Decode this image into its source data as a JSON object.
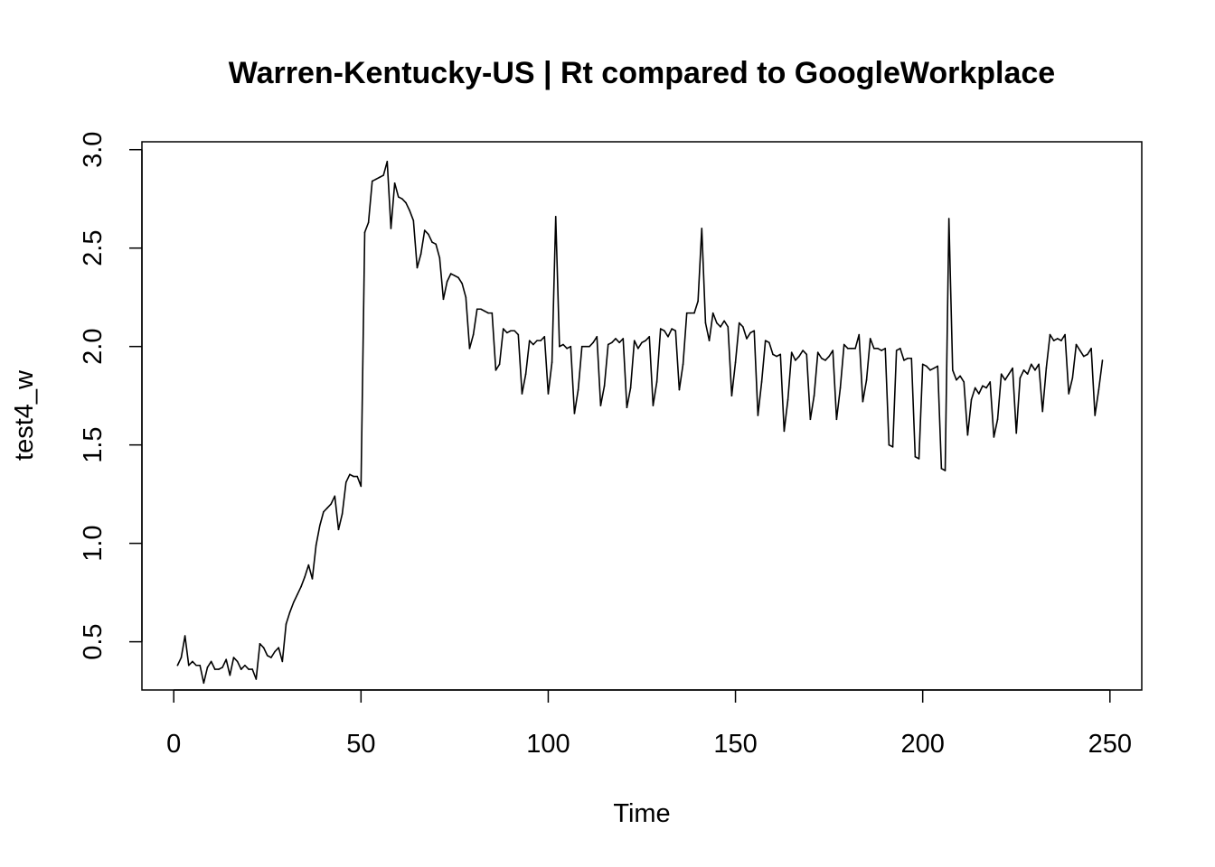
{
  "chart_data": {
    "type": "line",
    "title": "Warren-Kentucky-US | Rt compared to GoogleWorkplace",
    "xlabel": "Time",
    "ylabel": "test4_w",
    "xlim": [
      -8.5,
      258.5
    ],
    "ylim": [
      0.255,
      3.04
    ],
    "x_ticks": [
      0,
      50,
      100,
      150,
      200,
      250
    ],
    "y_ticks": [
      0.5,
      1.0,
      1.5,
      2.0,
      2.5,
      3.0
    ],
    "x_tick_labels": [
      "0",
      "50",
      "100",
      "150",
      "200",
      "250"
    ],
    "y_tick_labels": [
      "0.5",
      "1.0",
      "1.5",
      "2.0",
      "2.5",
      "3.0"
    ],
    "grid": false,
    "line_color": "#000000",
    "series": [
      {
        "x_start": 1,
        "x_step": 1,
        "values": [
          0.38,
          0.42,
          0.53,
          0.38,
          0.4,
          0.38,
          0.38,
          0.29,
          0.37,
          0.4,
          0.36,
          0.36,
          0.37,
          0.41,
          0.33,
          0.42,
          0.4,
          0.36,
          0.38,
          0.36,
          0.36,
          0.31,
          0.49,
          0.47,
          0.43,
          0.42,
          0.45,
          0.47,
          0.4,
          0.59,
          0.65,
          0.7,
          0.74,
          0.78,
          0.83,
          0.89,
          0.82,
          0.99,
          1.09,
          1.16,
          1.18,
          1.2,
          1.24,
          1.07,
          1.15,
          1.31,
          1.35,
          1.34,
          1.34,
          1.29,
          2.58,
          2.63,
          2.84,
          2.85,
          2.86,
          2.87,
          2.94,
          2.6,
          2.83,
          2.76,
          2.75,
          2.73,
          2.69,
          2.64,
          2.4,
          2.47,
          2.59,
          2.57,
          2.53,
          2.52,
          2.45,
          2.24,
          2.33,
          2.37,
          2.36,
          2.35,
          2.32,
          2.25,
          1.99,
          2.06,
          2.19,
          2.19,
          2.18,
          2.17,
          2.17,
          1.88,
          1.91,
          2.09,
          2.07,
          2.08,
          2.08,
          2.06,
          1.76,
          1.86,
          2.03,
          2.01,
          2.03,
          2.03,
          2.05,
          1.76,
          1.92,
          2.66,
          2.0,
          2.01,
          1.99,
          2.0,
          1.66,
          1.78,
          2.0,
          2.0,
          2.0,
          2.02,
          2.05,
          1.7,
          1.8,
          2.01,
          2.02,
          2.04,
          2.02,
          2.04,
          1.69,
          1.79,
          2.03,
          1.99,
          2.02,
          2.03,
          2.05,
          1.7,
          1.82,
          2.09,
          2.08,
          2.05,
          2.09,
          2.08,
          1.78,
          1.91,
          2.17,
          2.17,
          2.17,
          2.23,
          2.6,
          2.12,
          2.03,
          2.17,
          2.12,
          2.1,
          2.13,
          2.1,
          1.75,
          1.92,
          2.12,
          2.1,
          2.04,
          2.07,
          2.08,
          1.65,
          1.82,
          2.03,
          2.02,
          1.96,
          1.95,
          1.96,
          1.57,
          1.73,
          1.97,
          1.93,
          1.95,
          1.98,
          1.96,
          1.63,
          1.75,
          1.97,
          1.94,
          1.93,
          1.95,
          1.98,
          1.63,
          1.79,
          2.01,
          1.99,
          1.99,
          1.99,
          2.06,
          1.72,
          1.83,
          2.04,
          1.99,
          1.99,
          1.98,
          1.99,
          1.5,
          1.49,
          1.98,
          1.99,
          1.93,
          1.94,
          1.94,
          1.44,
          1.43,
          1.91,
          1.9,
          1.88,
          1.89,
          1.9,
          1.38,
          1.37,
          2.65,
          1.88,
          1.83,
          1.85,
          1.82,
          1.55,
          1.73,
          1.79,
          1.76,
          1.8,
          1.79,
          1.82,
          1.54,
          1.63,
          1.86,
          1.83,
          1.86,
          1.89,
          1.56,
          1.84,
          1.88,
          1.86,
          1.91,
          1.88,
          1.91,
          1.67,
          1.89,
          2.06,
          2.03,
          2.04,
          2.03,
          2.06,
          1.76,
          1.84,
          2.01,
          1.98,
          1.95,
          1.96,
          1.99,
          1.65,
          1.78,
          1.93
        ]
      }
    ]
  }
}
